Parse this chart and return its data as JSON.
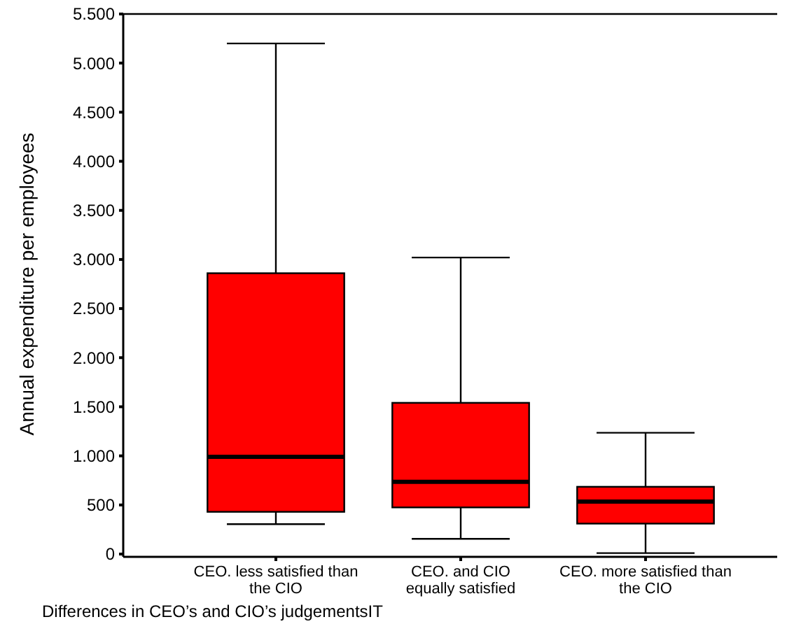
{
  "chart_data": {
    "type": "box",
    "categories": [
      "CEO. less satisfied than\nthe CIO",
      "CEO. and CIO\nequally satisfied",
      "CEO. more satisfied than\nthe CIO"
    ],
    "boxes": [
      {
        "low": 305,
        "q1": 430,
        "median": 990,
        "q3": 2860,
        "high": 5200
      },
      {
        "low": 155,
        "q1": 475,
        "median": 735,
        "q3": 1540,
        "high": 3020
      },
      {
        "low": 10,
        "q1": 310,
        "median": 535,
        "q3": 685,
        "high": 1235
      }
    ],
    "color": "#ff0000",
    "xlabel": "Differences in CEO’s and CIO’s judgementsIT",
    "ylabel": "Annual expenditure per employees",
    "ylim": [
      0,
      5500
    ],
    "yticks": [
      0,
      500,
      {
        "value": 1000,
        "label": "1.000"
      },
      {
        "value": 1500,
        "label": "1.500"
      },
      {
        "value": 2000,
        "label": "2.000"
      },
      {
        "value": 2500,
        "label": "2.500"
      },
      {
        "value": 3000,
        "label": "3.000"
      },
      {
        "value": 3500,
        "label": "3.500"
      },
      {
        "value": 4000,
        "label": "4.000"
      },
      {
        "value": 4500,
        "label": "4.500"
      },
      {
        "value": 5000,
        "label": "5.000"
      },
      {
        "value": 5500,
        "label": "5.500"
      }
    ],
    "grid": false
  }
}
